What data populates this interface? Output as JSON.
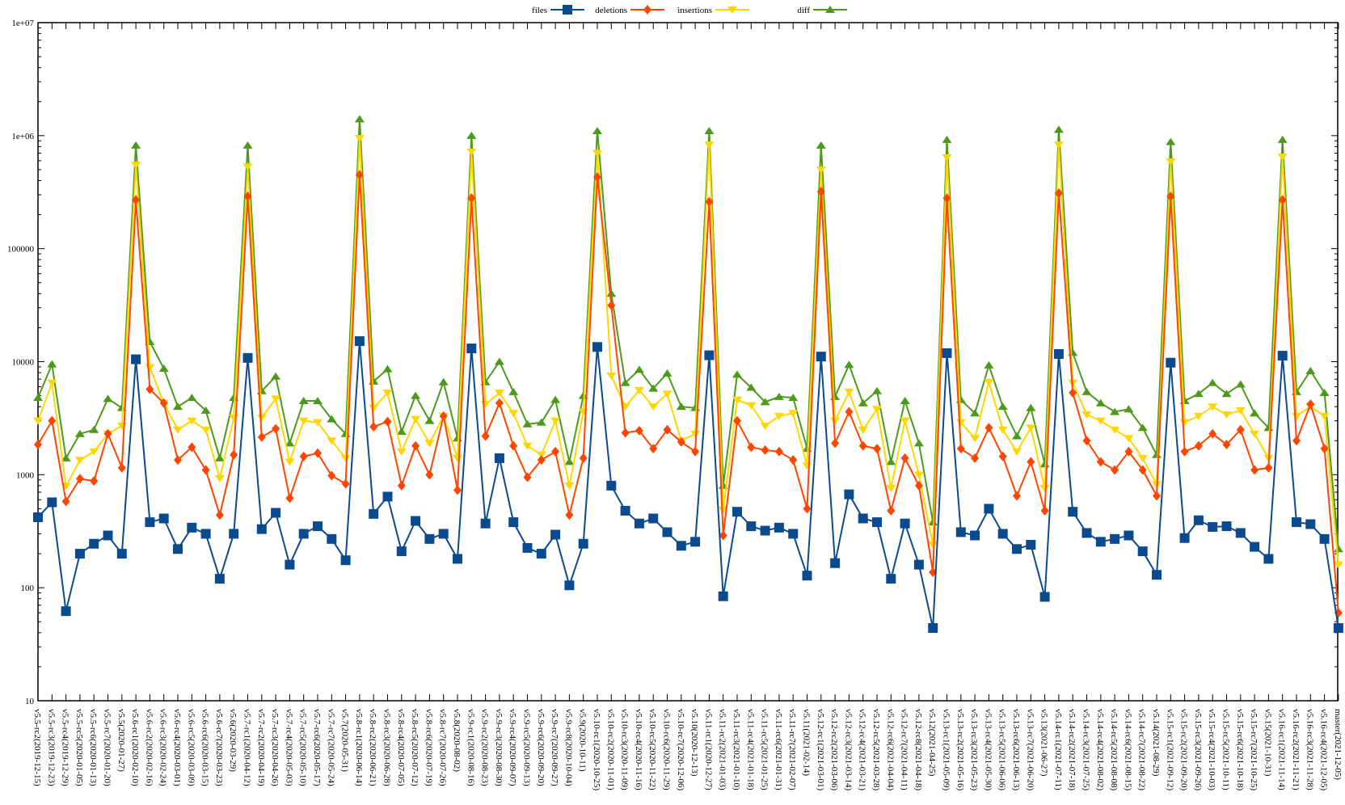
{
  "chart_data": {
    "type": "line",
    "title": "",
    "xlabel": "",
    "ylabel": "",
    "yscale": "log",
    "ylim": [
      10,
      10000000
    ],
    "yticks": [
      {
        "value": 10,
        "label": "10"
      },
      {
        "value": 100,
        "label": "100"
      },
      {
        "value": 1000,
        "label": "1000"
      },
      {
        "value": 10000,
        "label": "10000"
      },
      {
        "value": 100000,
        "label": "100000"
      },
      {
        "value": 1000000,
        "label": "1e+06"
      },
      {
        "value": 10000000,
        "label": "1e+07"
      }
    ],
    "legend_position": "top-center",
    "categories": [
      "v5.5-rc2(2019-12-15)",
      "v5.5-rc3(2019-12-23)",
      "v5.5-rc4(2019-12-29)",
      "v5.5-rc5(2020-01-05)",
      "v5.5-rc6(2020-01-13)",
      "v5.5-rc7(2020-01-20)",
      "v5.5(2020-01-27)",
      "v5.6-rc1(2020-02-10)",
      "v5.6-rc2(2020-02-16)",
      "v5.6-rc3(2020-02-24)",
      "v5.6-rc4(2020-03-01)",
      "v5.6-rc5(2020-03-09)",
      "v5.6-rc6(2020-03-15)",
      "v5.6-rc7(2020-03-23)",
      "v5.6(2020-03-29)",
      "v5.7-rc1(2020-04-12)",
      "v5.7-rc2(2020-04-19)",
      "v5.7-rc3(2020-04-26)",
      "v5.7-rc4(2020-05-03)",
      "v5.7-rc5(2020-05-10)",
      "v5.7-rc6(2020-05-17)",
      "v5.7-rc7(2020-05-24)",
      "v5.7(2020-05-31)",
      "v5.8-rc1(2020-06-14)",
      "v5.8-rc2(2020-06-21)",
      "v5.8-rc3(2020-06-28)",
      "v5.8-rc4(2020-07-05)",
      "v5.8-rc5(2020-07-12)",
      "v5.8-rc6(2020-07-19)",
      "v5.8-rc7(2020-07-26)",
      "v5.8(2020-08-02)",
      "v5.9-rc1(2020-08-16)",
      "v5.9-rc2(2020-08-23)",
      "v5.9-rc3(2020-08-30)",
      "v5.9-rc4(2020-09-07)",
      "v5.9-rc5(2020-09-13)",
      "v5.9-rc6(2020-09-20)",
      "v5.9-rc7(2020-09-27)",
      "v5.9-rc8(2020-10-04)",
      "v5.9(2020-10-11)",
      "v5.10-rc1(2020-10-25)",
      "v5.10-rc2(2020-11-01)",
      "v5.10-rc3(2020-11-09)",
      "v5.10-rc4(2020-11-16)",
      "v5.10-rc5(2020-11-22)",
      "v5.10-rc6(2020-11-29)",
      "v5.10-rc7(2020-12-06)",
      "v5.10(2020-12-13)",
      "v5.11-rc1(2020-12-27)",
      "v5.11-rc2(2021-01-03)",
      "v5.11-rc3(2021-01-10)",
      "v5.11-rc4(2021-01-18)",
      "v5.11-rc5(2021-01-25)",
      "v5.11-rc6(2021-01-31)",
      "v5.11-rc7(2021-02-07)",
      "v5.11(2021-02-14)",
      "v5.12-rc1(2021-03-01)",
      "v5.12-rc2(2021-03-06)",
      "v5.12-rc3(2021-03-14)",
      "v5.12-rc4(2021-03-21)",
      "v5.12-rc5(2021-03-28)",
      "v5.12-rc6(2021-04-04)",
      "v5.12-rc7(2021-04-11)",
      "v5.12-rc8(2021-04-18)",
      "v5.12(2021-04-25)",
      "v5.13-rc1(2021-05-09)",
      "v5.13-rc2(2021-05-16)",
      "v5.13-rc3(2021-05-23)",
      "v5.13-rc4(2021-05-30)",
      "v5.13-rc5(2021-06-06)",
      "v5.13-rc6(2021-06-13)",
      "v5.13-rc7(2021-06-20)",
      "v5.13(2021-06-27)",
      "v5.14-rc1(2021-07-11)",
      "v5.14-rc2(2021-07-18)",
      "v5.14-rc3(2021-07-25)",
      "v5.14-rc4(2021-08-02)",
      "v5.14-rc5(2021-08-08)",
      "v5.14-rc6(2021-08-15)",
      "v5.14-rc7(2021-08-22)",
      "v5.14(2021-08-29)",
      "v5.15-rc1(2021-09-12)",
      "v5.15-rc2(2021-09-20)",
      "v5.15-rc3(2021-09-26)",
      "v5.15-rc4(2021-10-03)",
      "v5.15-rc5(2021-10-11)",
      "v5.15-rc6(2021-10-18)",
      "v5.15-rc7(2021-10-25)",
      "v5.15(2021-10-31)",
      "v5.16-rc1(2021-11-14)",
      "v5.16-rc2(2021-11-21)",
      "v5.16-rc3(2021-11-28)",
      "v5.16-rc4(2021-12-05)",
      "master(2021-12-05)"
    ],
    "series": [
      {
        "name": "files",
        "color": "#0b4a8f",
        "marker": "square",
        "values": [
          420,
          570,
          62,
          200,
          245,
          290,
          200,
          10500,
          380,
          410,
          220,
          340,
          300,
          120,
          300,
          10800,
          330,
          460,
          160,
          300,
          350,
          270,
          175,
          15200,
          450,
          640,
          210,
          390,
          270,
          300,
          180,
          13100,
          370,
          1400,
          380,
          225,
          200,
          295,
          105,
          245,
          13500,
          800,
          480,
          370,
          410,
          310,
          235,
          255,
          11400,
          84,
          470,
          350,
          320,
          340,
          300,
          128,
          11100,
          165,
          670,
          410,
          380,
          120,
          370,
          160,
          44,
          11900,
          310,
          290,
          500,
          300,
          220,
          240,
          83,
          11700,
          470,
          305,
          255,
          270,
          290,
          210,
          130,
          9800,
          275,
          395,
          345,
          350,
          305,
          230,
          180,
          11300,
          380,
          365,
          270,
          44
        ]
      },
      {
        "name": "deletions",
        "color": "#ff4500",
        "marker": "diamond",
        "values": [
          1850,
          3000,
          580,
          920,
          880,
          2300,
          1150,
          270000,
          5700,
          4300,
          1350,
          1750,
          1100,
          440,
          1500,
          290000,
          2150,
          2550,
          620,
          1450,
          1550,
          980,
          830,
          450000,
          2650,
          2950,
          800,
          1800,
          1000,
          3300,
          730,
          280000,
          2200,
          4300,
          1800,
          950,
          1350,
          1600,
          440,
          1400,
          430000,
          31500,
          2350,
          2450,
          1700,
          2500,
          1950,
          1600,
          260000,
          290,
          3000,
          1750,
          1650,
          1600,
          1350,
          500,
          320000,
          1900,
          3600,
          1800,
          1700,
          480,
          1400,
          800,
          137,
          280000,
          1700,
          1400,
          2600,
          1450,
          650,
          1300,
          480,
          310000,
          5300,
          2000,
          1300,
          1100,
          1600,
          1100,
          650,
          290000,
          1600,
          1800,
          2300,
          1850,
          2500,
          1100,
          1150,
          270000,
          2000,
          4200,
          1700,
          60
        ]
      },
      {
        "name": "insertions",
        "color": "#ffd700",
        "marker": "triangle-down",
        "values": [
          3000,
          6500,
          790,
          1350,
          1600,
          2300,
          2700,
          550000,
          8900,
          4300,
          2500,
          3000,
          2500,
          930,
          3200,
          530000,
          3200,
          4700,
          1300,
          3000,
          2900,
          2000,
          1400,
          950000,
          3900,
          5300,
          1600,
          3100,
          1900,
          3300,
          1400,
          720000,
          4200,
          5300,
          3500,
          1800,
          1500,
          3000,
          800,
          3600,
          700000,
          7500,
          4000,
          5600,
          4000,
          5200,
          2000,
          2300,
          830000,
          490,
          4600,
          4100,
          2700,
          3300,
          3500,
          1200,
          500000,
          3000,
          5400,
          2500,
          3800,
          760,
          3000,
          1000,
          240,
          640000,
          2900,
          2100,
          6600,
          2500,
          1600,
          2600,
          760,
          830000,
          6500,
          3400,
          3000,
          2500,
          2100,
          1400,
          820,
          590000,
          2900,
          3300,
          4000,
          3400,
          3700,
          2300,
          1400,
          650000,
          3300,
          4000,
          3300,
          160
        ]
      },
      {
        "name": "diff",
        "color": "#4d9a1a",
        "marker": "triangle-up",
        "values": [
          4800,
          9500,
          1400,
          2300,
          2500,
          4700,
          3900,
          820000,
          15000,
          8700,
          4000,
          4800,
          3700,
          1400,
          4800,
          820000,
          5500,
          7400,
          1900,
          4500,
          4500,
          3100,
          2300,
          1400000,
          6700,
          8600,
          2400,
          5000,
          3000,
          6600,
          2100,
          1000000,
          6600,
          10000,
          5400,
          2800,
          2900,
          4600,
          1300,
          5000,
          1100000,
          40000,
          6500,
          8500,
          5800,
          7900,
          4000,
          3900,
          1100000,
          800,
          7700,
          5900,
          4400,
          4900,
          4800,
          1700,
          820000,
          4900,
          9400,
          4300,
          5500,
          1300,
          4500,
          1900,
          380,
          920000,
          4600,
          3500,
          9300,
          4000,
          2200,
          3900,
          1240,
          1130000,
          12000,
          5400,
          4300,
          3600,
          3800,
          2600,
          1500,
          880000,
          4500,
          5200,
          6500,
          5200,
          6300,
          3500,
          2600,
          920000,
          5400,
          8300,
          5300,
          220
        ]
      }
    ]
  }
}
